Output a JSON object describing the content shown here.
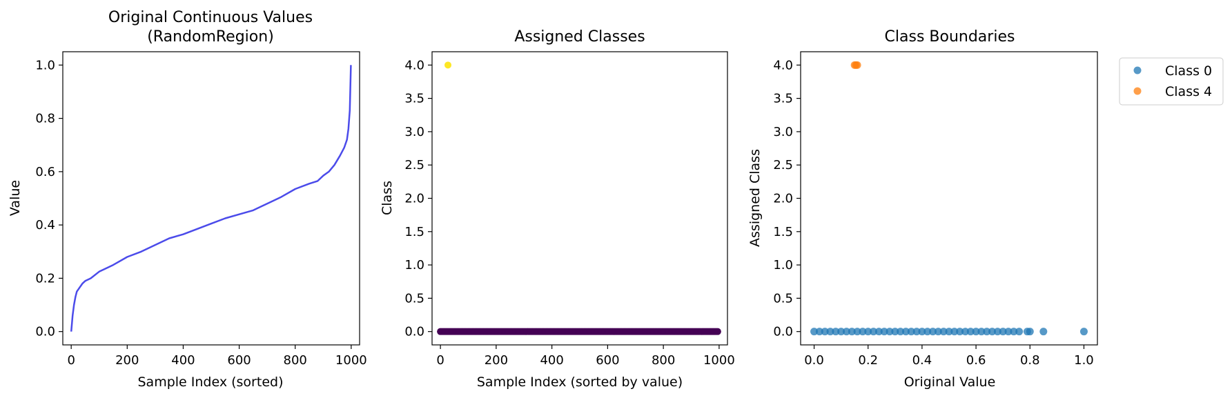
{
  "chart_data": [
    {
      "type": "line",
      "title_lines": [
        "Original Continuous Values",
        "(RandomRegion)"
      ],
      "xlabel": "Sample Index (sorted)",
      "ylabel": "Value",
      "xlim": [
        -30,
        1030
      ],
      "ylim": [
        -0.05,
        1.05
      ],
      "xticks": [
        0,
        200,
        400,
        600,
        800,
        1000
      ],
      "yticks": [
        0.0,
        0.2,
        0.4,
        0.6,
        0.8,
        1.0
      ],
      "x_tick_labels": [
        "0",
        "200",
        "400",
        "600",
        "800",
        "1000"
      ],
      "y_tick_labels": [
        "0.0",
        "0.2",
        "0.4",
        "0.6",
        "0.8",
        "1.0"
      ],
      "line_color": "#4b4bea",
      "series": [
        {
          "x": [
            0,
            5,
            10,
            15,
            20,
            30,
            40,
            50,
            70,
            100,
            130,
            150,
            200,
            250,
            300,
            350,
            400,
            450,
            500,
            550,
            600,
            650,
            700,
            750,
            800,
            850,
            880,
            900,
            920,
            940,
            960,
            975,
            985,
            990,
            995,
            999
          ],
          "y": [
            0.0,
            0.06,
            0.1,
            0.13,
            0.15,
            0.165,
            0.18,
            0.19,
            0.2,
            0.225,
            0.24,
            0.25,
            0.28,
            0.3,
            0.325,
            0.35,
            0.365,
            0.385,
            0.405,
            0.425,
            0.44,
            0.455,
            0.48,
            0.505,
            0.535,
            0.555,
            0.565,
            0.585,
            0.6,
            0.625,
            0.66,
            0.69,
            0.72,
            0.76,
            0.83,
            1.0
          ]
        }
      ]
    },
    {
      "type": "scatter",
      "title": "Assigned Classes",
      "xlabel": "Sample Index (sorted by value)",
      "ylabel": "Class",
      "xlim": [
        -30,
        1030
      ],
      "ylim": [
        -0.2,
        4.2
      ],
      "xticks": [
        0,
        200,
        400,
        600,
        800,
        1000
      ],
      "yticks": [
        0.0,
        0.5,
        1.0,
        1.5,
        2.0,
        2.5,
        3.0,
        3.5,
        4.0
      ],
      "x_tick_labels": [
        "0",
        "200",
        "400",
        "600",
        "800",
        "1000"
      ],
      "y_tick_labels": [
        "0.0",
        "0.5",
        "1.0",
        "1.5",
        "2.0",
        "2.5",
        "3.0",
        "3.5",
        "4.0"
      ],
      "series": [
        {
          "class": 0,
          "color": "#440154",
          "x_range": [
            0,
            999
          ],
          "x_step": 5,
          "y": 0
        },
        {
          "class": 4,
          "color": "#fde725",
          "x": [
            27
          ],
          "y": [
            4
          ]
        }
      ]
    },
    {
      "type": "scatter",
      "title": "Class Boundaries",
      "xlabel": "Original Value",
      "ylabel": "Assigned Class",
      "xlim": [
        -0.05,
        1.05
      ],
      "ylim": [
        -0.2,
        4.2
      ],
      "xticks": [
        0.0,
        0.2,
        0.4,
        0.6,
        0.8,
        1.0
      ],
      "yticks": [
        0.0,
        0.5,
        1.0,
        1.5,
        2.0,
        2.5,
        3.0,
        3.5,
        4.0
      ],
      "x_tick_labels": [
        "0.0",
        "0.2",
        "0.4",
        "0.6",
        "0.8",
        "1.0"
      ],
      "y_tick_labels": [
        "0.0",
        "0.5",
        "1.0",
        "1.5",
        "2.0",
        "2.5",
        "3.0",
        "3.5",
        "4.0"
      ],
      "legend_position": "outside-top-right",
      "series": [
        {
          "name": "Class 0",
          "color": "#1f77b4",
          "y": 0,
          "x": [
            0.0,
            0.02,
            0.04,
            0.06,
            0.08,
            0.1,
            0.12,
            0.14,
            0.16,
            0.18,
            0.2,
            0.22,
            0.24,
            0.26,
            0.28,
            0.3,
            0.32,
            0.34,
            0.36,
            0.38,
            0.4,
            0.42,
            0.44,
            0.46,
            0.48,
            0.5,
            0.52,
            0.54,
            0.56,
            0.58,
            0.6,
            0.62,
            0.64,
            0.66,
            0.68,
            0.7,
            0.72,
            0.74,
            0.76,
            0.79,
            0.8,
            0.85,
            1.0
          ]
        },
        {
          "name": "Class 4",
          "color": "#ff7f0e",
          "y": 4,
          "x": [
            0.15,
            0.155,
            0.16
          ]
        }
      ]
    }
  ]
}
